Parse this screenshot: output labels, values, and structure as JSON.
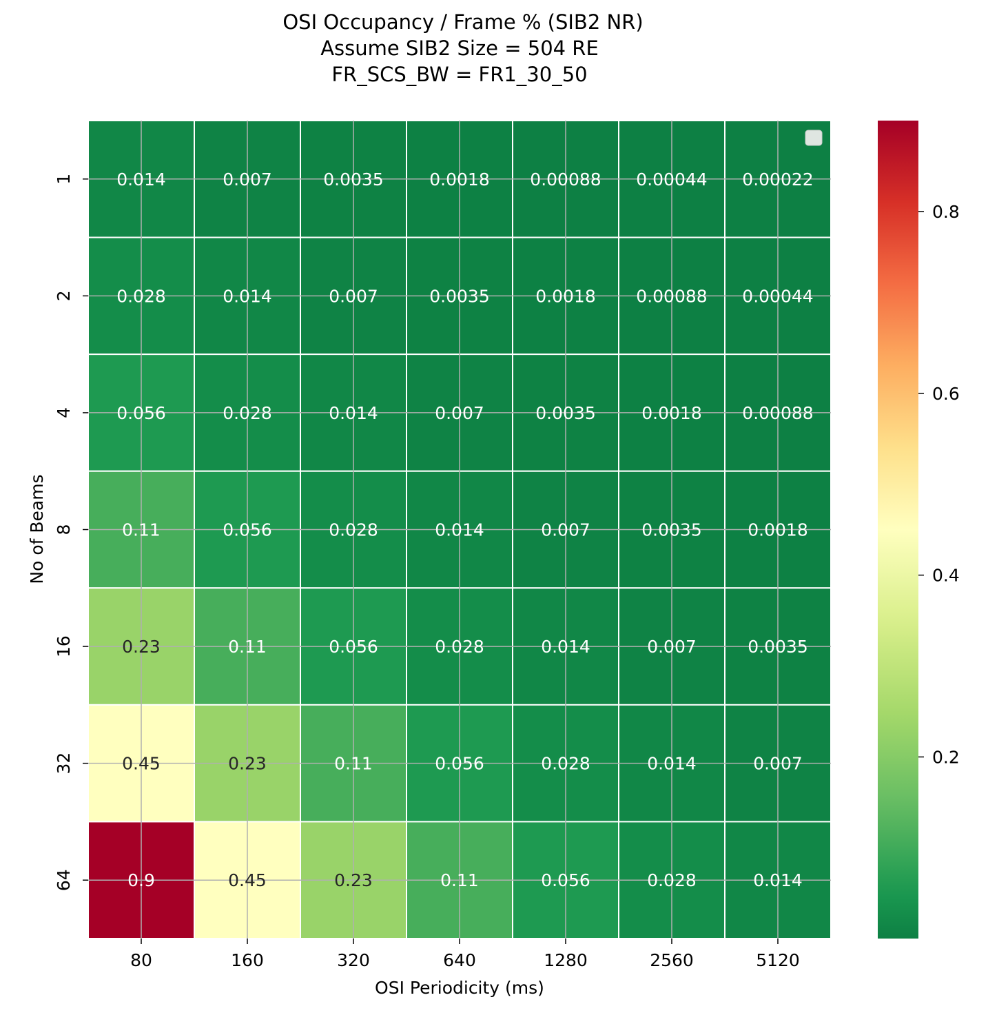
{
  "chart_data": {
    "type": "heatmap",
    "title_lines": [
      "OSI Occupancy / Frame % (SIB2 NR)",
      "Assume SIB2 Size = 504 RE",
      "FR_SCS_BW = FR1_30_50"
    ],
    "xlabel": "OSI Periodicity (ms)",
    "ylabel": "No of Beams",
    "x_categories": [
      "80",
      "160",
      "320",
      "640",
      "1280",
      "2560",
      "5120"
    ],
    "y_categories": [
      "1",
      "2",
      "4",
      "8",
      "16",
      "32",
      "64"
    ],
    "values": [
      [
        0.014,
        0.007,
        0.0035,
        0.0018,
        0.00088,
        0.00044,
        0.00022
      ],
      [
        0.028,
        0.014,
        0.007,
        0.0035,
        0.0018,
        0.00088,
        0.00044
      ],
      [
        0.056,
        0.028,
        0.014,
        0.007,
        0.0035,
        0.0018,
        0.00088
      ],
      [
        0.11,
        0.056,
        0.028,
        0.014,
        0.007,
        0.0035,
        0.0018
      ],
      [
        0.23,
        0.11,
        0.056,
        0.028,
        0.014,
        0.007,
        0.0035
      ],
      [
        0.45,
        0.23,
        0.11,
        0.056,
        0.028,
        0.014,
        0.007
      ],
      [
        0.9,
        0.45,
        0.23,
        0.11,
        0.056,
        0.028,
        0.014
      ]
    ],
    "annotations": [
      [
        "0.014",
        "0.007",
        "0.0035",
        "0.0018",
        "0.00088",
        "0.00044",
        "0.00022"
      ],
      [
        "0.028",
        "0.014",
        "0.007",
        "0.0035",
        "0.0018",
        "0.00088",
        "0.00044"
      ],
      [
        "0.056",
        "0.028",
        "0.014",
        "0.007",
        "0.0035",
        "0.0018",
        "0.00088"
      ],
      [
        "0.11",
        "0.056",
        "0.028",
        "0.014",
        "0.007",
        "0.0035",
        "0.0018"
      ],
      [
        "0.23",
        "0.11",
        "0.056",
        "0.028",
        "0.014",
        "0.007",
        "0.0035"
      ],
      [
        "0.45",
        "0.23",
        "0.11",
        "0.056",
        "0.028",
        "0.014",
        "0.007"
      ],
      [
        "0.9",
        "0.45",
        "0.23",
        "0.11",
        "0.056",
        "0.028",
        "0.014"
      ]
    ],
    "colormap": "RdYlGn_r",
    "color_range": [
      0.00022,
      0.9
    ],
    "colorbar_ticks": [
      "0.2",
      "0.4",
      "0.6",
      "0.8"
    ],
    "colorbar_tick_values": [
      0.2,
      0.4,
      0.6,
      0.8
    ],
    "grid": true,
    "legend": "top-right (empty)"
  }
}
